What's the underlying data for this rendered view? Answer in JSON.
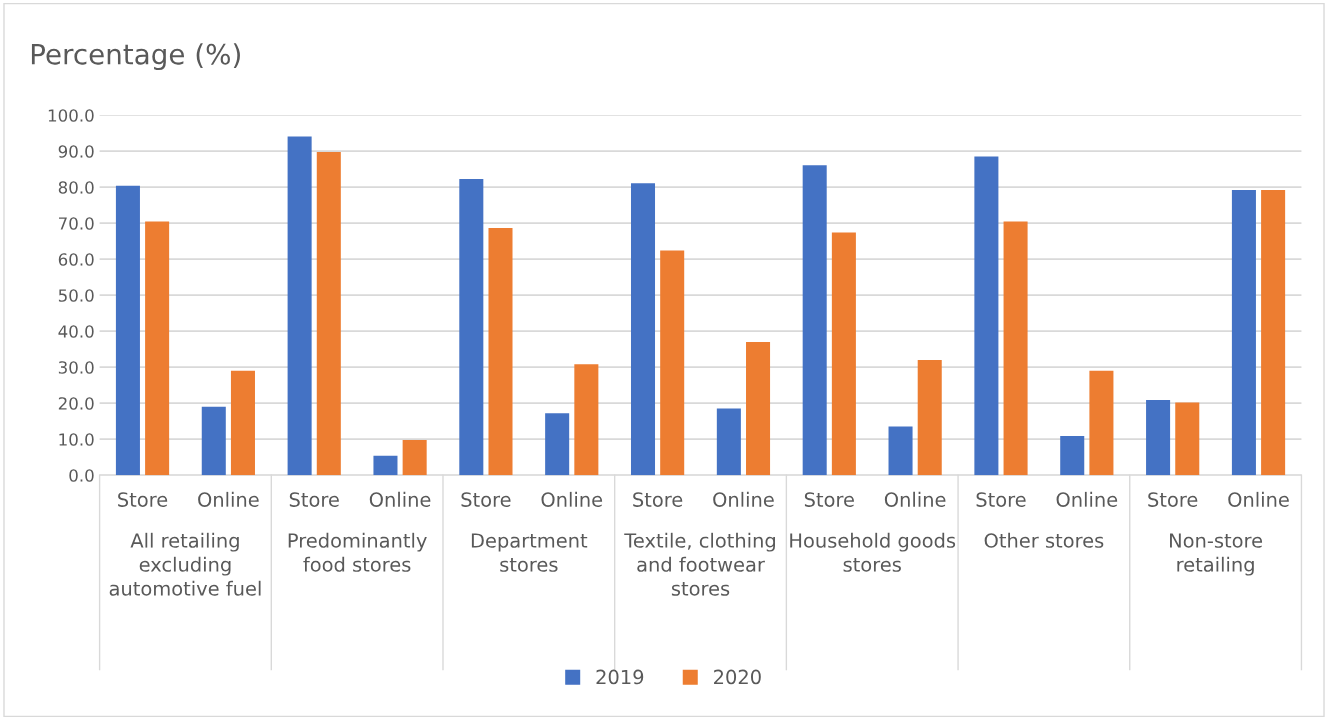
{
  "chart_data": {
    "type": "bar",
    "title": "Percentage (%)",
    "categories": [
      "Store",
      "Online",
      "Store",
      "Online",
      "Store",
      "Online",
      "Store",
      "Online",
      "Store",
      "Online",
      "Store",
      "Online",
      "Store",
      "Online"
    ],
    "series": [
      {
        "name": "2019",
        "color": "#4472c4",
        "values": [
          80.4,
          19.0,
          94.1,
          5.4,
          82.3,
          17.2,
          81.1,
          18.5,
          86.1,
          13.5,
          88.5,
          10.9,
          20.9,
          79.2
        ]
      },
      {
        "name": "2020",
        "color": "#ed7d31",
        "values": [
          70.5,
          29.0,
          89.8,
          9.8,
          68.7,
          30.8,
          62.4,
          37.0,
          67.4,
          32.0,
          70.5,
          29.0,
          20.2,
          79.2
        ]
      }
    ],
    "annotations": [
      "All retailing\nexcluding\nautomotive fuel",
      "Predominantly\nfood stores",
      "Department\nstores",
      "Textile, clothing\nand footwear\nstores",
      "Household goods\nstores",
      "Other stores",
      "Non-store\nretailing"
    ],
    "ylim": [
      0,
      100
    ],
    "yticks": [
      {
        "value": 0,
        "label": "0.0"
      },
      {
        "value": 10,
        "label": "10.0"
      },
      {
        "value": 20,
        "label": "20.0"
      },
      {
        "value": 30,
        "label": "30.0"
      },
      {
        "value": 40,
        "label": "40.0"
      },
      {
        "value": 50,
        "label": "50.0"
      },
      {
        "value": 60,
        "label": "60.0"
      },
      {
        "value": 70,
        "label": "70.0"
      },
      {
        "value": 80,
        "label": "80.0"
      },
      {
        "value": 90,
        "label": "90.0"
      },
      {
        "value": 100,
        "label": "100.0"
      }
    ],
    "grid": "y",
    "legend": "bottom"
  }
}
